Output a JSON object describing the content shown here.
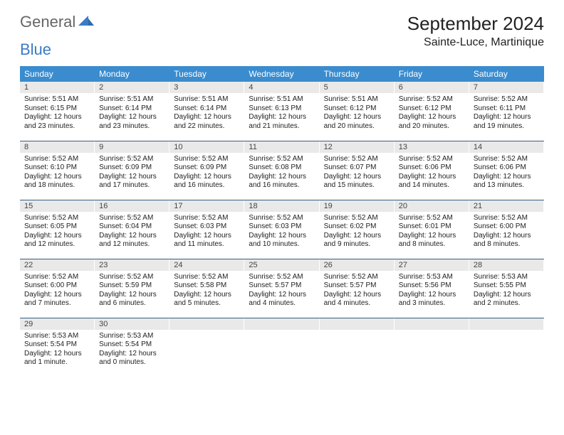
{
  "header": {
    "brand_general": "General",
    "brand_blue": "Blue",
    "month_title": "September 2024",
    "location": "Sainte-Luce, Martinique"
  },
  "colors": {
    "header_bg": "#3a8ccf",
    "header_text": "#ffffff",
    "daynum_bg": "#e9e9e9",
    "row_border": "#375f84",
    "brand_blue": "#3a7cc4",
    "text": "#222222"
  },
  "weekdays": [
    "Sunday",
    "Monday",
    "Tuesday",
    "Wednesday",
    "Thursday",
    "Friday",
    "Saturday"
  ],
  "weeks": [
    [
      {
        "n": "1",
        "sr": "5:51 AM",
        "ss": "6:15 PM",
        "dl": "12 hours and 23 minutes."
      },
      {
        "n": "2",
        "sr": "5:51 AM",
        "ss": "6:14 PM",
        "dl": "12 hours and 23 minutes."
      },
      {
        "n": "3",
        "sr": "5:51 AM",
        "ss": "6:14 PM",
        "dl": "12 hours and 22 minutes."
      },
      {
        "n": "4",
        "sr": "5:51 AM",
        "ss": "6:13 PM",
        "dl": "12 hours and 21 minutes."
      },
      {
        "n": "5",
        "sr": "5:51 AM",
        "ss": "6:12 PM",
        "dl": "12 hours and 20 minutes."
      },
      {
        "n": "6",
        "sr": "5:52 AM",
        "ss": "6:12 PM",
        "dl": "12 hours and 20 minutes."
      },
      {
        "n": "7",
        "sr": "5:52 AM",
        "ss": "6:11 PM",
        "dl": "12 hours and 19 minutes."
      }
    ],
    [
      {
        "n": "8",
        "sr": "5:52 AM",
        "ss": "6:10 PM",
        "dl": "12 hours and 18 minutes."
      },
      {
        "n": "9",
        "sr": "5:52 AM",
        "ss": "6:09 PM",
        "dl": "12 hours and 17 minutes."
      },
      {
        "n": "10",
        "sr": "5:52 AM",
        "ss": "6:09 PM",
        "dl": "12 hours and 16 minutes."
      },
      {
        "n": "11",
        "sr": "5:52 AM",
        "ss": "6:08 PM",
        "dl": "12 hours and 16 minutes."
      },
      {
        "n": "12",
        "sr": "5:52 AM",
        "ss": "6:07 PM",
        "dl": "12 hours and 15 minutes."
      },
      {
        "n": "13",
        "sr": "5:52 AM",
        "ss": "6:06 PM",
        "dl": "12 hours and 14 minutes."
      },
      {
        "n": "14",
        "sr": "5:52 AM",
        "ss": "6:06 PM",
        "dl": "12 hours and 13 minutes."
      }
    ],
    [
      {
        "n": "15",
        "sr": "5:52 AM",
        "ss": "6:05 PM",
        "dl": "12 hours and 12 minutes."
      },
      {
        "n": "16",
        "sr": "5:52 AM",
        "ss": "6:04 PM",
        "dl": "12 hours and 12 minutes."
      },
      {
        "n": "17",
        "sr": "5:52 AM",
        "ss": "6:03 PM",
        "dl": "12 hours and 11 minutes."
      },
      {
        "n": "18",
        "sr": "5:52 AM",
        "ss": "6:03 PM",
        "dl": "12 hours and 10 minutes."
      },
      {
        "n": "19",
        "sr": "5:52 AM",
        "ss": "6:02 PM",
        "dl": "12 hours and 9 minutes."
      },
      {
        "n": "20",
        "sr": "5:52 AM",
        "ss": "6:01 PM",
        "dl": "12 hours and 8 minutes."
      },
      {
        "n": "21",
        "sr": "5:52 AM",
        "ss": "6:00 PM",
        "dl": "12 hours and 8 minutes."
      }
    ],
    [
      {
        "n": "22",
        "sr": "5:52 AM",
        "ss": "6:00 PM",
        "dl": "12 hours and 7 minutes."
      },
      {
        "n": "23",
        "sr": "5:52 AM",
        "ss": "5:59 PM",
        "dl": "12 hours and 6 minutes."
      },
      {
        "n": "24",
        "sr": "5:52 AM",
        "ss": "5:58 PM",
        "dl": "12 hours and 5 minutes."
      },
      {
        "n": "25",
        "sr": "5:52 AM",
        "ss": "5:57 PM",
        "dl": "12 hours and 4 minutes."
      },
      {
        "n": "26",
        "sr": "5:52 AM",
        "ss": "5:57 PM",
        "dl": "12 hours and 4 minutes."
      },
      {
        "n": "27",
        "sr": "5:53 AM",
        "ss": "5:56 PM",
        "dl": "12 hours and 3 minutes."
      },
      {
        "n": "28",
        "sr": "5:53 AM",
        "ss": "5:55 PM",
        "dl": "12 hours and 2 minutes."
      }
    ],
    [
      {
        "n": "29",
        "sr": "5:53 AM",
        "ss": "5:54 PM",
        "dl": "12 hours and 1 minute."
      },
      {
        "n": "30",
        "sr": "5:53 AM",
        "ss": "5:54 PM",
        "dl": "12 hours and 0 minutes."
      },
      null,
      null,
      null,
      null,
      null
    ]
  ],
  "labels": {
    "sunrise": "Sunrise: ",
    "sunset": "Sunset: ",
    "daylight": "Daylight: "
  }
}
